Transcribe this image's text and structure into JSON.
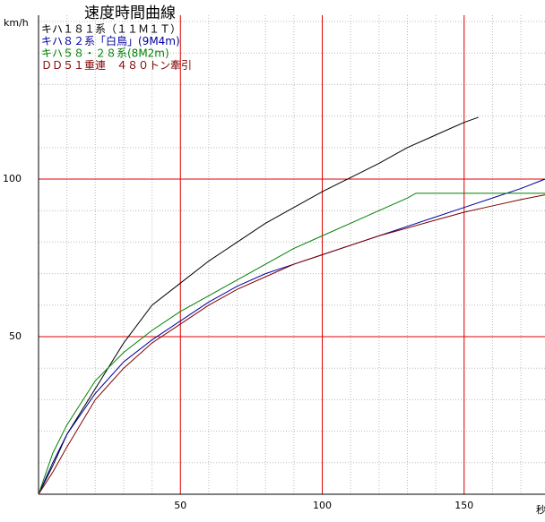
{
  "chart_data": {
    "type": "line",
    "title": "速度時間曲線",
    "y_label": "km/h",
    "x_label": "秒",
    "xlim": [
      0,
      178.5
    ],
    "ylim": [
      0,
      152
    ],
    "xticks": [
      50,
      100,
      150
    ],
    "yticks": [
      50,
      100
    ],
    "grid_color": "#e00000",
    "minor_grid_step": 10,
    "series": [
      {
        "name": "キハ１８１系（１１Ｍ１Ｔ）",
        "color": "#000000",
        "x": [
          0,
          5,
          10,
          20,
          30,
          40,
          50,
          60,
          70,
          80,
          90,
          100,
          110,
          120,
          130,
          140,
          150,
          155
        ],
        "values": [
          0,
          9,
          19,
          33.5,
          48,
          60,
          67,
          74,
          80,
          86,
          91,
          96,
          100.5,
          105,
          110,
          114,
          118,
          119.6
        ]
      },
      {
        "name": "キハ８２系「白鳥」(9M4m)",
        "color": "#0000a0",
        "x": [
          0,
          5,
          10,
          20,
          30,
          40,
          50,
          60,
          70,
          80,
          90,
          100,
          110,
          120,
          130,
          140,
          150,
          160,
          170,
          178.5
        ],
        "values": [
          0,
          10,
          19,
          32,
          42,
          49,
          55,
          61,
          66,
          70,
          73,
          76,
          79,
          82,
          85,
          88,
          91,
          94,
          97,
          100
        ]
      },
      {
        "name": "キハ５８・２８系(8M2m)",
        "color": "#008000",
        "x": [
          0,
          5,
          10,
          20,
          30,
          40,
          50,
          60,
          70,
          80,
          90,
          100,
          110,
          120,
          130,
          133,
          178.5
        ],
        "values": [
          0,
          13,
          22,
          36,
          45,
          52,
          58,
          63,
          68,
          73,
          78,
          82,
          86,
          90,
          94,
          95.5,
          95.5
        ]
      },
      {
        "name": "ＤＤ５１重連　４８０トン牽引",
        "color": "#800000",
        "x": [
          0,
          5,
          10,
          20,
          30,
          40,
          50,
          60,
          70,
          80,
          90,
          100,
          110,
          120,
          130,
          140,
          150,
          160,
          170,
          178.5
        ],
        "values": [
          0,
          7,
          15,
          30,
          40,
          48,
          54,
          60,
          65,
          69,
          73,
          76,
          79,
          82,
          84.5,
          87,
          89.5,
          91.5,
          93.5,
          95
        ]
      }
    ]
  }
}
